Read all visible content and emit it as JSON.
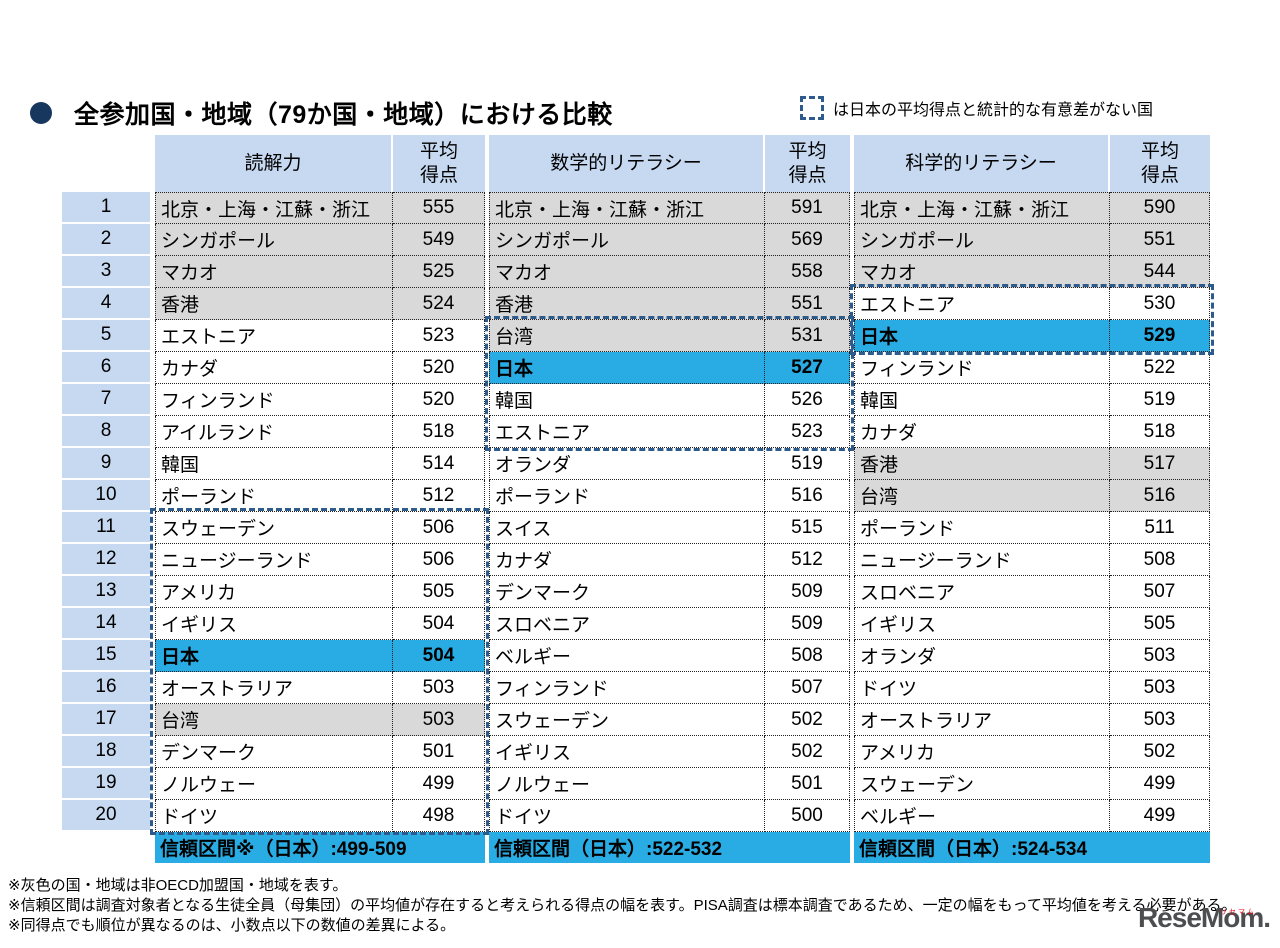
{
  "page": {
    "title": "全参加国・地域（79か国・地域）における比較",
    "legend_text": "は日本の平均得点と統計的な有意差がない国"
  },
  "colors": {
    "header_blue": "#c6d9f1",
    "non_oecd_grey": "#d9d9d9",
    "japan_cyan": "#29ace3",
    "dashed_border_blue": "#2e5b8c",
    "bullet_navy": "#17375e"
  },
  "table": {
    "headers": {
      "reading": "読解力",
      "reading_avg": "平均\n得点",
      "math": "数学的リテラシー",
      "math_avg": "平均\n得点",
      "science": "科学的リテラシー",
      "science_avg": "平均\n得点"
    },
    "rows": [
      {
        "rank": "1",
        "r": [
          "北京・上海・江蘇・浙江",
          "555",
          "grey"
        ],
        "m": [
          "北京・上海・江蘇・浙江",
          "591",
          "grey"
        ],
        "s": [
          "北京・上海・江蘇・浙江",
          "590",
          "grey"
        ]
      },
      {
        "rank": "2",
        "r": [
          "シンガポール",
          "549",
          "grey"
        ],
        "m": [
          "シンガポール",
          "569",
          "grey"
        ],
        "s": [
          "シンガポール",
          "551",
          "grey"
        ]
      },
      {
        "rank": "3",
        "r": [
          "マカオ",
          "525",
          "grey"
        ],
        "m": [
          "マカオ",
          "558",
          "grey"
        ],
        "s": [
          "マカオ",
          "544",
          "grey"
        ]
      },
      {
        "rank": "4",
        "r": [
          "香港",
          "524",
          "grey"
        ],
        "m": [
          "香港",
          "551",
          "grey"
        ],
        "s": [
          "エストニア",
          "530",
          "white"
        ]
      },
      {
        "rank": "5",
        "r": [
          "エストニア",
          "523",
          "white"
        ],
        "m": [
          "台湾",
          "531",
          "grey"
        ],
        "s": [
          "日本",
          "529",
          "japan"
        ]
      },
      {
        "rank": "6",
        "r": [
          "カナダ",
          "520",
          "white"
        ],
        "m": [
          "日本",
          "527",
          "japan"
        ],
        "s": [
          "フィンランド",
          "522",
          "white"
        ]
      },
      {
        "rank": "7",
        "r": [
          "フィンランド",
          "520",
          "white"
        ],
        "m": [
          "韓国",
          "526",
          "white"
        ],
        "s": [
          "韓国",
          "519",
          "white"
        ]
      },
      {
        "rank": "8",
        "r": [
          "アイルランド",
          "518",
          "white"
        ],
        "m": [
          "エストニア",
          "523",
          "white"
        ],
        "s": [
          "カナダ",
          "518",
          "white"
        ]
      },
      {
        "rank": "9",
        "r": [
          "韓国",
          "514",
          "white"
        ],
        "m": [
          "オランダ",
          "519",
          "white"
        ],
        "s": [
          "香港",
          "517",
          "grey"
        ]
      },
      {
        "rank": "10",
        "r": [
          "ポーランド",
          "512",
          "white"
        ],
        "m": [
          "ポーランド",
          "516",
          "white"
        ],
        "s": [
          "台湾",
          "516",
          "grey"
        ]
      },
      {
        "rank": "11",
        "r": [
          "スウェーデン",
          "506",
          "white"
        ],
        "m": [
          "スイス",
          "515",
          "white"
        ],
        "s": [
          "ポーランド",
          "511",
          "white"
        ]
      },
      {
        "rank": "12",
        "r": [
          "ニュージーランド",
          "506",
          "white"
        ],
        "m": [
          "カナダ",
          "512",
          "white"
        ],
        "s": [
          "ニュージーランド",
          "508",
          "white"
        ]
      },
      {
        "rank": "13",
        "r": [
          "アメリカ",
          "505",
          "white"
        ],
        "m": [
          "デンマーク",
          "509",
          "white"
        ],
        "s": [
          "スロベニア",
          "507",
          "white"
        ]
      },
      {
        "rank": "14",
        "r": [
          "イギリス",
          "504",
          "white"
        ],
        "m": [
          "スロベニア",
          "509",
          "white"
        ],
        "s": [
          "イギリス",
          "505",
          "white"
        ]
      },
      {
        "rank": "15",
        "r": [
          "日本",
          "504",
          "japan"
        ],
        "m": [
          "ベルギー",
          "508",
          "white"
        ],
        "s": [
          "オランダ",
          "503",
          "white"
        ]
      },
      {
        "rank": "16",
        "r": [
          "オーストラリア",
          "503",
          "white"
        ],
        "m": [
          "フィンランド",
          "507",
          "white"
        ],
        "s": [
          "ドイツ",
          "503",
          "white"
        ]
      },
      {
        "rank": "17",
        "r": [
          "台湾",
          "503",
          "grey"
        ],
        "m": [
          "スウェーデン",
          "502",
          "white"
        ],
        "s": [
          "オーストラリア",
          "503",
          "white"
        ]
      },
      {
        "rank": "18",
        "r": [
          "デンマーク",
          "501",
          "white"
        ],
        "m": [
          "イギリス",
          "502",
          "white"
        ],
        "s": [
          "アメリカ",
          "502",
          "white"
        ]
      },
      {
        "rank": "19",
        "r": [
          "ノルウェー",
          "499",
          "white"
        ],
        "m": [
          "ノルウェー",
          "501",
          "white"
        ],
        "s": [
          "スウェーデン",
          "499",
          "white"
        ]
      },
      {
        "rank": "20",
        "r": [
          "ドイツ",
          "498",
          "white"
        ],
        "m": [
          "ドイツ",
          "500",
          "white"
        ],
        "s": [
          "ベルギー",
          "499",
          "white"
        ]
      }
    ],
    "confidence": {
      "reading": "信頼区間※（日本）:499-509",
      "math": "信頼区間（日本）:522-532",
      "science": "信頼区間（日本）:524-534"
    }
  },
  "footnotes": [
    "※灰色の国・地域は非OECD加盟国・地域を表す。",
    "※信頼区間は調査対象者となる生徒全員（母集団）の平均値が存在すると考えられる得点の幅を表す。PISA調査は標本調査であるため、一定の幅をもって平均値を考える必要がある。",
    "※同得点でも順位が異なるのは、小数点以下の数値の差異による。"
  ],
  "logo": {
    "text": "ReseMom.",
    "ruby": "リセマム"
  }
}
